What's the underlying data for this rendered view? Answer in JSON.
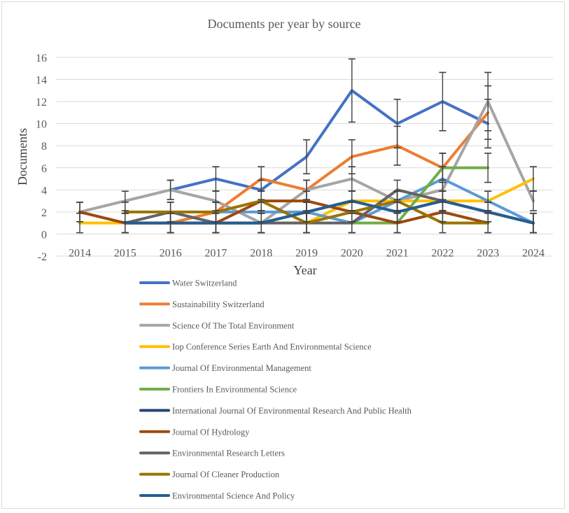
{
  "chart_data": {
    "type": "line",
    "title": "Documents per year by source",
    "xlabel": "Year",
    "ylabel": "Documents",
    "x": [
      2014,
      2015,
      2016,
      2017,
      2018,
      2019,
      2020,
      2021,
      2022,
      2023,
      2024
    ],
    "ylim": [
      -2,
      16
    ],
    "yticks": [
      -2,
      0,
      2,
      4,
      6,
      8,
      10,
      12,
      14,
      16
    ],
    "grid": true,
    "legend_position": "bottom",
    "error_bars": true,
    "series": [
      {
        "name": "Water Switzerland",
        "color": "#4472C4",
        "values": [
          null,
          null,
          4,
          5,
          4,
          7,
          13,
          10,
          12,
          10,
          null
        ]
      },
      {
        "name": "Sustainability Switzerland",
        "color": "#ED7D31",
        "values": [
          null,
          null,
          1,
          2,
          5,
          4,
          7,
          8,
          6,
          11,
          null
        ]
      },
      {
        "name": "Science Of The Total Environment",
        "color": "#A5A5A5",
        "values": [
          2,
          3,
          4,
          3,
          1,
          4,
          5,
          3,
          4,
          12,
          3
        ]
      },
      {
        "name": "Iop Conference Series Earth And Environmental Science",
        "color": "#FFC000",
        "values": [
          1,
          1,
          1,
          1,
          1,
          1,
          3,
          3,
          3,
          3,
          5
        ]
      },
      {
        "name": "Journal Of Environmental Management",
        "color": "#5B9BD5",
        "values": [
          null,
          null,
          null,
          2,
          2,
          2,
          1,
          3,
          5,
          3,
          1
        ]
      },
      {
        "name": "Frontiers In Environmental Science",
        "color": "#70AD47",
        "values": [
          null,
          null,
          null,
          null,
          null,
          null,
          1,
          1,
          6,
          6,
          null
        ]
      },
      {
        "name": "International Journal Of Environmental Research And Public Health",
        "color": "#264478",
        "values": [
          null,
          1,
          1,
          1,
          1,
          2,
          3,
          2,
          3,
          2,
          1
        ]
      },
      {
        "name": "Journal Of Hydrology",
        "color": "#9E480E",
        "values": [
          2,
          1,
          1,
          1,
          3,
          3,
          2,
          1,
          2,
          1,
          null
        ]
      },
      {
        "name": "Environmental Research Letters",
        "color": "#636363",
        "values": [
          null,
          1,
          2,
          1,
          1,
          1,
          1,
          4,
          3,
          2,
          1
        ]
      },
      {
        "name": "Journal Of Cleaner Production",
        "color": "#997300",
        "values": [
          null,
          2,
          2,
          2,
          3,
          1,
          2,
          3,
          1,
          1,
          null
        ]
      },
      {
        "name": "Environmental Science And Policy",
        "color": "#255E91",
        "values": [
          null,
          1,
          1,
          1,
          1,
          2,
          3,
          2,
          3,
          2,
          1
        ]
      }
    ]
  }
}
